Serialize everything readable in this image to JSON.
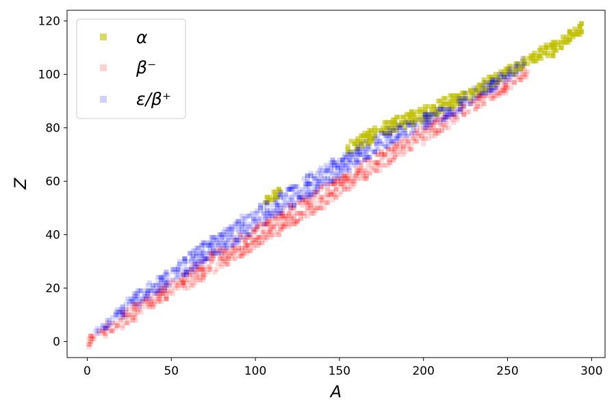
{
  "chart_data": {
    "type": "scatter",
    "title": "",
    "xlabel": "A",
    "ylabel": "Z",
    "xlim": [
      -12,
      308
    ],
    "ylim": [
      -6,
      124
    ],
    "xticks": [
      0,
      50,
      100,
      150,
      200,
      250,
      300
    ],
    "yticks": [
      0,
      20,
      40,
      60,
      80,
      100,
      120
    ],
    "marker": "square",
    "grid": false,
    "legend_position": "top-left",
    "series": [
      {
        "key": "alpha",
        "name": "α",
        "color": "#bfbf00",
        "opacity": 0.6,
        "bands": [
          {
            "x0": 105,
            "x1": 115,
            "z0": 52,
            "z1": 56,
            "width": 1.8
          },
          {
            "x0": 155,
            "x1": 175,
            "z0": 72,
            "z1": 79,
            "width": 2.4
          },
          {
            "x0": 175,
            "x1": 200,
            "z0": 79,
            "z1": 85,
            "width": 2.6
          },
          {
            "x0": 200,
            "x1": 225,
            "z0": 85,
            "z1": 92,
            "width": 2.6
          },
          {
            "x0": 225,
            "x1": 245,
            "z0": 92,
            "z1": 99,
            "width": 2.2
          },
          {
            "x0": 245,
            "x1": 262,
            "z0": 99,
            "z1": 105,
            "width": 2.0
          },
          {
            "x0": 262,
            "x1": 278,
            "z0": 105,
            "z1": 110,
            "width": 2.4
          },
          {
            "x0": 278,
            "x1": 295,
            "z0": 110,
            "z1": 118,
            "width": 2.2
          }
        ]
      },
      {
        "key": "beta_minus",
        "name": "β⁻",
        "color": "#ff0000",
        "opacity": 0.15,
        "bands": [
          {
            "x0": 1,
            "x1": 20,
            "z0": 0,
            "z1": 8,
            "width": 2.0
          },
          {
            "x0": 20,
            "x1": 60,
            "z0": 8,
            "z1": 24,
            "width": 3.2
          },
          {
            "x0": 60,
            "x1": 110,
            "z0": 24,
            "z1": 43,
            "width": 4.2
          },
          {
            "x0": 110,
            "x1": 150,
            "z0": 43,
            "z1": 58,
            "width": 4.2
          },
          {
            "x0": 150,
            "x1": 180,
            "z0": 58,
            "z1": 70,
            "width": 3.6
          },
          {
            "x0": 180,
            "x1": 215,
            "z0": 70,
            "z1": 83,
            "width": 3.0
          },
          {
            "x0": 215,
            "x1": 250,
            "z0": 83,
            "z1": 96,
            "width": 2.4
          },
          {
            "x0": 250,
            "x1": 262,
            "z0": 96,
            "z1": 101,
            "width": 1.6
          }
        ]
      },
      {
        "key": "ec_beta_plus",
        "name": "ε/β⁺",
        "color": "#0000ff",
        "opacity": 0.15,
        "bands": [
          {
            "x0": 5,
            "x1": 20,
            "z0": 3,
            "z1": 11,
            "width": 1.8
          },
          {
            "x0": 20,
            "x1": 60,
            "z0": 11,
            "z1": 29,
            "width": 3.2
          },
          {
            "x0": 60,
            "x1": 110,
            "z0": 29,
            "z1": 50,
            "width": 4.2
          },
          {
            "x0": 110,
            "x1": 150,
            "z0": 50,
            "z1": 65,
            "width": 4.2
          },
          {
            "x0": 150,
            "x1": 180,
            "z0": 65,
            "z1": 77,
            "width": 3.6
          },
          {
            "x0": 180,
            "x1": 215,
            "z0": 77,
            "z1": 86,
            "width": 3.0
          },
          {
            "x0": 215,
            "x1": 245,
            "z0": 86,
            "z1": 98,
            "width": 2.6
          },
          {
            "x0": 245,
            "x1": 260,
            "z0": 98,
            "z1": 104,
            "width": 2.0
          }
        ]
      }
    ]
  }
}
